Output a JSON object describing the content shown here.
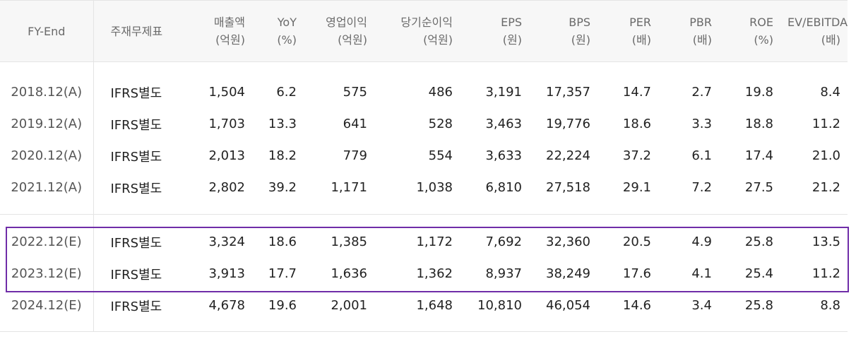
{
  "columns": [
    {
      "main": "FY-End",
      "unit": ""
    },
    {
      "main": "주재무제표",
      "unit": ""
    },
    {
      "main": "매출액",
      "unit": "(억원)"
    },
    {
      "main": "YoY",
      "unit": "(%)"
    },
    {
      "main": "영업이익",
      "unit": "(억원)"
    },
    {
      "main": "당기순이익",
      "unit": "(억원)"
    },
    {
      "main": "EPS",
      "unit": "(원)"
    },
    {
      "main": "BPS",
      "unit": "(원)"
    },
    {
      "main": "PER",
      "unit": "(배)"
    },
    {
      "main": "PBR",
      "unit": "(배)"
    },
    {
      "main": "ROE",
      "unit": "(%)"
    },
    {
      "main": "EV/EBITDA",
      "unit": "(배)"
    }
  ],
  "rows": [
    [
      "2018.12(A)",
      "IFRS별도",
      "1,504",
      "6.2",
      "575",
      "486",
      "3,191",
      "17,357",
      "14.7",
      "2.7",
      "19.8",
      "8.4"
    ],
    [
      "2019.12(A)",
      "IFRS별도",
      "1,703",
      "13.3",
      "641",
      "528",
      "3,463",
      "19,776",
      "18.6",
      "3.3",
      "18.8",
      "11.2"
    ],
    [
      "2020.12(A)",
      "IFRS별도",
      "2,013",
      "18.2",
      "779",
      "554",
      "3,633",
      "22,224",
      "37.2",
      "6.1",
      "17.4",
      "21.0"
    ],
    [
      "2021.12(A)",
      "IFRS별도",
      "2,802",
      "39.2",
      "1,171",
      "1,038",
      "6,810",
      "27,518",
      "29.1",
      "7.2",
      "27.5",
      "21.2"
    ],
    [
      "2022.12(E)",
      "IFRS별도",
      "3,324",
      "18.6",
      "1,385",
      "1,172",
      "7,692",
      "32,360",
      "20.5",
      "4.9",
      "25.8",
      "13.5"
    ],
    [
      "2023.12(E)",
      "IFRS별도",
      "3,913",
      "17.7",
      "1,636",
      "1,362",
      "8,937",
      "38,249",
      "17.6",
      "4.1",
      "25.4",
      "11.2"
    ],
    [
      "2024.12(E)",
      "IFRS별도",
      "4,678",
      "19.6",
      "2,001",
      "1,648",
      "10,810",
      "46,054",
      "14.6",
      "3.4",
      "25.8",
      "8.8"
    ]
  ],
  "highlight_color": "#6f2da8"
}
